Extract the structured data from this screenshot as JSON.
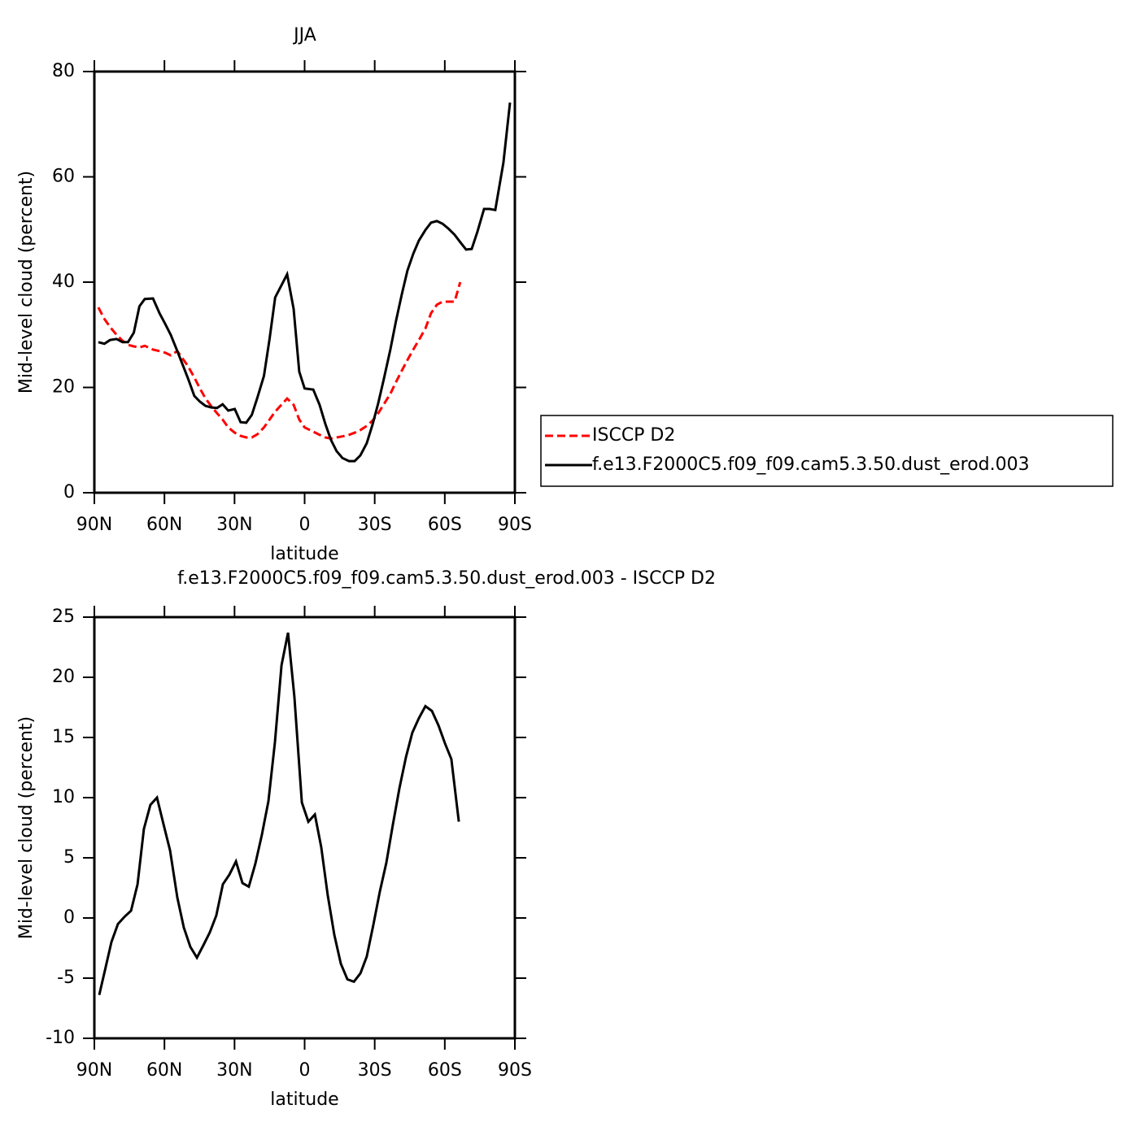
{
  "chart_data": [
    {
      "type": "line",
      "title": "JJA",
      "x_label": "latitude",
      "y_label": "Mid-level cloud (percent)",
      "xlim": [
        90,
        -90
      ],
      "xticks": [
        {
          "value": 90,
          "label": "90N"
        },
        {
          "value": 60,
          "label": "60N"
        },
        {
          "value": 30,
          "label": "30N"
        },
        0,
        {
          "value": -30,
          "label": "30S"
        },
        {
          "value": -60,
          "label": "60S"
        },
        {
          "value": -90,
          "label": "90S"
        }
      ],
      "ylim": [
        0,
        80
      ],
      "yticks": [
        0,
        20,
        40,
        60,
        80
      ],
      "legend": "right",
      "x": [
        88.3,
        85.7,
        83.3,
        80.5,
        78.0,
        75.6,
        73.1,
        70.7,
        68.4,
        64.9,
        62.1,
        59.7,
        57.3,
        54.5,
        50.0,
        47.2,
        44.8,
        42.4,
        39.9,
        37.5,
        35.1,
        32.7,
        29.9,
        27.4,
        25.0,
        22.6,
        20.2,
        17.4,
        15.0,
        12.6,
        7.5,
        4.7,
        2.3,
        0.0,
        -3.7,
        -6.4,
        -8.9,
        -11.3,
        -13.7,
        -16.2,
        -19.0,
        -21.4,
        -23.9,
        -26.6,
        -29.1,
        -31.5,
        -33.9,
        -36.7,
        -39.1,
        -41.6,
        -44.0,
        -46.5,
        -48.9,
        -51.7,
        -54.1,
        -56.6,
        -59.0,
        -61.5,
        -64.2,
        -66.6,
        -69.1,
        -71.5,
        -74.0,
        -76.8,
        -79.2,
        -81.6,
        -85.1,
        -87.9
      ],
      "series": [
        {
          "name": "ISCCP D2",
          "color": "#ff0000",
          "style": "dashed",
          "values": [
            35.2,
            33.0,
            31.5,
            30.0,
            28.9,
            28.1,
            27.8,
            27.6,
            27.9,
            27.2,
            26.9,
            26.6,
            26.1,
            26.9,
            24.1,
            21.9,
            19.8,
            17.9,
            16.4,
            15.1,
            13.9,
            12.4,
            11.4,
            10.8,
            10.5,
            10.5,
            11.1,
            12.4,
            13.9,
            15.4,
            17.9,
            16.7,
            13.9,
            12.4,
            11.6,
            11.0,
            10.5,
            10.3,
            10.5,
            10.7,
            11.0,
            11.4,
            11.9,
            12.7,
            13.7,
            15.1,
            16.8,
            18.8,
            21.0,
            23.2,
            25.2,
            27.2,
            29.0,
            31.2,
            34.1,
            35.7,
            36.3,
            36.3,
            36.3,
            40.0,
            null,
            null,
            null,
            null,
            null,
            null,
            null,
            null
          ]
        },
        {
          "name": "f.e13.F2000C5.f09_f09.cam5.3.50.dust_erod.003",
          "color": "#000000",
          "style": "solid",
          "values": [
            28.6,
            28.3,
            29.0,
            29.2,
            28.6,
            28.6,
            30.4,
            35.4,
            36.8,
            36.9,
            34.1,
            32.1,
            30.0,
            26.9,
            21.8,
            18.4,
            17.3,
            16.5,
            16.2,
            16.1,
            16.8,
            15.6,
            15.9,
            13.4,
            13.3,
            14.8,
            18.1,
            22.2,
            29.2,
            37.1,
            41.5,
            34.9,
            23.0,
            19.8,
            19.6,
            16.7,
            13.0,
            10.0,
            7.9,
            6.6,
            6.0,
            6.0,
            7.1,
            9.4,
            13.0,
            17.0,
            21.6,
            27.2,
            32.6,
            37.7,
            42.2,
            45.4,
            47.9,
            49.9,
            51.3,
            51.6,
            51.1,
            50.2,
            49.0,
            47.6,
            46.2,
            46.3,
            49.6,
            53.9,
            53.9,
            53.7,
            62.7,
            74.1
          ]
        }
      ]
    },
    {
      "type": "line",
      "title": "f.e13.F2000C5.f09_f09.cam5.3.50.dust_erod.003 - ISCCP D2",
      "x_label": "latitude",
      "y_label": "Mid-level cloud (percent)",
      "xlim": [
        90,
        -90
      ],
      "xticks": [
        {
          "value": 90,
          "label": "90N"
        },
        {
          "value": 60,
          "label": "60N"
        },
        {
          "value": 30,
          "label": "30N"
        },
        0,
        {
          "value": -30,
          "label": "30S"
        },
        {
          "value": -60,
          "label": "60S"
        },
        {
          "value": -90,
          "label": "90S"
        }
      ],
      "ylim": [
        -10,
        25
      ],
      "yticks": [
        -10,
        -5,
        0,
        5,
        10,
        15,
        20,
        25
      ],
      "x": [
        87.9,
        85.4,
        82.7,
        79.9,
        77.1,
        74.3,
        71.5,
        68.8,
        66.0,
        63.2,
        60.4,
        57.6,
        54.5,
        51.7,
        48.9,
        46.1,
        43.4,
        40.6,
        37.8,
        35.0,
        32.2,
        29.4,
        26.6,
        23.9,
        21.1,
        18.3,
        15.5,
        12.7,
        9.9,
        7.1,
        4.4,
        1.2,
        -1.6,
        -4.4,
        -7.1,
        -9.9,
        -12.7,
        -15.5,
        -18.3,
        -21.1,
        -23.9,
        -26.6,
        -29.4,
        -32.2,
        -35.0,
        -37.8,
        -40.6,
        -43.4,
        -46.1,
        -48.9,
        -51.7,
        -54.5,
        -57.3,
        -60.1,
        -62.8,
        -66.0
      ],
      "series": [
        {
          "color": "#000000",
          "style": "solid",
          "values": [
            -6.4,
            -4.3,
            -2.0,
            -0.5,
            0.1,
            0.6,
            2.8,
            7.4,
            9.4,
            10.0,
            7.8,
            5.6,
            1.7,
            -0.8,
            -2.4,
            -3.3,
            -2.3,
            -1.2,
            0.2,
            2.8,
            3.6,
            4.7,
            2.9,
            2.6,
            4.5,
            6.9,
            9.7,
            14.6,
            21.0,
            23.7,
            18.4,
            9.6,
            8.0,
            8.6,
            5.9,
            1.9,
            -1.4,
            -3.8,
            -5.1,
            -5.3,
            -4.6,
            -3.2,
            -0.6,
            2.2,
            4.6,
            7.8,
            10.8,
            13.4,
            15.4,
            16.6,
            17.6,
            17.2,
            16.0,
            14.5,
            13.2,
            8.0
          ]
        }
      ]
    }
  ]
}
